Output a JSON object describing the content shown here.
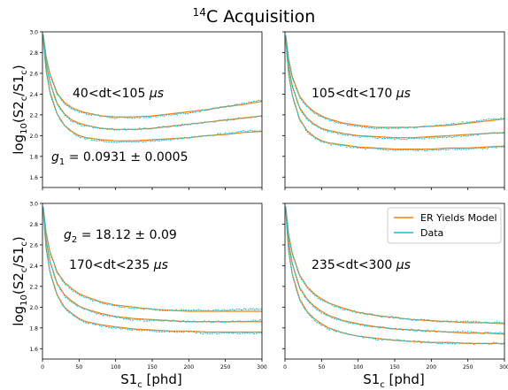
{
  "figure": {
    "title_sup": "14",
    "title_main": "C Acquisition"
  },
  "colors": {
    "model": "#ff7f0e",
    "data": "#17becf",
    "axis": "#000000"
  },
  "legend": {
    "placement": "top-right of bottom-right panel",
    "entries": [
      {
        "label": "ER Yields Model",
        "color": "#ff7f0e"
      },
      {
        "label": "Data",
        "color": "#17becf"
      }
    ]
  },
  "axes_common": {
    "xlabel": "S1",
    "xlabel_sub": "c",
    "xlabel_unit": " [phd]",
    "ylabel_pre": "log",
    "ylabel_10": "10",
    "ylabel_mid": "(S2",
    "ylabel_c1": "c",
    "ylabel_slash": "/S1",
    "ylabel_c2": "c",
    "ylabel_end": ")",
    "xlim": [
      0,
      300
    ],
    "ylim": [
      1.5,
      3.0
    ],
    "xticks": [
      "0",
      "50",
      "100",
      "150",
      "200",
      "250",
      "300"
    ],
    "yticks": [
      "1.6",
      "1.8",
      "2.0",
      "2.2",
      "2.4",
      "2.6",
      "2.8",
      "3.0"
    ]
  },
  "annotations": {
    "g1_sym": "g",
    "g1_sub": "1",
    "g1_val": " = 0.0931 ± 0.0005",
    "g2_sym": "g",
    "g2_sub": "2",
    "g2_val": " = 18.12 ± 0.09",
    "unit_mu": "μs"
  },
  "chart_data": [
    {
      "type": "line",
      "panel": "top-left",
      "label_range": "40<dt<105 ",
      "x": [
        1,
        5,
        10,
        20,
        30,
        40,
        50,
        60,
        80,
        100,
        125,
        150,
        175,
        200,
        225,
        250,
        275,
        300
      ],
      "series": [
        {
          "name": "ER Yields Model",
          "curves": [
            [
              2.97,
              2.76,
              2.6,
              2.41,
              2.32,
              2.27,
              2.24,
              2.22,
              2.19,
              2.18,
              2.18,
              2.19,
              2.21,
              2.23,
              2.25,
              2.28,
              2.3,
              2.33
            ],
            [
              2.95,
              2.7,
              2.52,
              2.31,
              2.21,
              2.15,
              2.12,
              2.1,
              2.07,
              2.06,
              2.06,
              2.07,
              2.09,
              2.11,
              2.13,
              2.15,
              2.17,
              2.19
            ],
            [
              2.93,
              2.63,
              2.43,
              2.21,
              2.1,
              2.04,
              2.0,
              1.98,
              1.96,
              1.95,
              1.95,
              1.96,
              1.97,
              1.98,
              2.0,
              2.01,
              2.03,
              2.04
            ]
          ]
        },
        {
          "name": "Data",
          "curves": [
            [
              2.97,
              2.75,
              2.59,
              2.4,
              2.31,
              2.26,
              2.23,
              2.21,
              2.19,
              2.17,
              2.17,
              2.18,
              2.2,
              2.22,
              2.25,
              2.28,
              2.31,
              2.34
            ],
            [
              2.95,
              2.69,
              2.51,
              2.3,
              2.2,
              2.14,
              2.11,
              2.09,
              2.07,
              2.06,
              2.06,
              2.07,
              2.09,
              2.11,
              2.13,
              2.15,
              2.17,
              2.19
            ],
            [
              2.93,
              2.62,
              2.42,
              2.2,
              2.09,
              2.03,
              1.99,
              1.97,
              1.95,
              1.94,
              1.94,
              1.95,
              1.96,
              1.98,
              2.0,
              2.02,
              2.04,
              2.05
            ]
          ]
        }
      ]
    },
    {
      "type": "line",
      "panel": "top-right",
      "label_range": "105<dt<170 ",
      "x": [
        1,
        5,
        10,
        20,
        30,
        40,
        50,
        60,
        80,
        100,
        125,
        150,
        175,
        200,
        225,
        250,
        275,
        300
      ],
      "series": [
        {
          "name": "ER Yields Model",
          "curves": [
            [
              2.97,
              2.74,
              2.57,
              2.38,
              2.29,
              2.23,
              2.19,
              2.16,
              2.12,
              2.1,
              2.08,
              2.08,
              2.08,
              2.09,
              2.1,
              2.12,
              2.14,
              2.16
            ],
            [
              2.95,
              2.67,
              2.48,
              2.27,
              2.17,
              2.11,
              2.07,
              2.05,
              2.02,
              2.0,
              1.99,
              1.98,
              1.98,
              1.99,
              2.0,
              2.01,
              2.02,
              2.03
            ],
            [
              2.93,
              2.6,
              2.39,
              2.16,
              2.05,
              1.99,
              1.95,
              1.93,
              1.91,
              1.89,
              1.88,
              1.87,
              1.87,
              1.87,
              1.88,
              1.88,
              1.89,
              1.9
            ]
          ]
        },
        {
          "name": "Data",
          "curves": [
            [
              2.97,
              2.73,
              2.56,
              2.37,
              2.28,
              2.22,
              2.18,
              2.15,
              2.11,
              2.09,
              2.07,
              2.07,
              2.08,
              2.09,
              2.11,
              2.13,
              2.15,
              2.17
            ],
            [
              2.95,
              2.66,
              2.47,
              2.26,
              2.16,
              2.1,
              2.06,
              2.04,
              2.01,
              1.99,
              1.98,
              1.97,
              1.97,
              1.98,
              1.99,
              2.0,
              2.02,
              2.03
            ],
            [
              2.93,
              2.59,
              2.38,
              2.15,
              2.04,
              1.98,
              1.94,
              1.92,
              1.9,
              1.88,
              1.87,
              1.86,
              1.86,
              1.86,
              1.87,
              1.87,
              1.88,
              1.89
            ]
          ]
        }
      ]
    },
    {
      "type": "line",
      "panel": "bottom-left",
      "label_range": "170<dt<235 ",
      "x": [
        1,
        5,
        10,
        20,
        30,
        40,
        50,
        60,
        80,
        100,
        125,
        150,
        175,
        200,
        225,
        250,
        275,
        300
      ],
      "series": [
        {
          "name": "ER Yields Model",
          "curves": [
            [
              2.97,
              2.72,
              2.54,
              2.34,
              2.24,
              2.18,
              2.13,
              2.1,
              2.05,
              2.02,
              2.0,
              1.98,
              1.97,
              1.96,
              1.96,
              1.96,
              1.96,
              1.96
            ],
            [
              2.95,
              2.65,
              2.45,
              2.23,
              2.12,
              2.06,
              2.01,
              1.98,
              1.94,
              1.91,
              1.89,
              1.88,
              1.87,
              1.86,
              1.86,
              1.86,
              1.86,
              1.86
            ],
            [
              2.93,
              2.57,
              2.35,
              2.12,
              2.0,
              1.94,
              1.89,
              1.86,
              1.83,
              1.81,
              1.79,
              1.78,
              1.77,
              1.77,
              1.76,
              1.76,
              1.76,
              1.76
            ]
          ]
        },
        {
          "name": "Data",
          "curves": [
            [
              2.97,
              2.71,
              2.53,
              2.33,
              2.23,
              2.17,
              2.12,
              2.09,
              2.04,
              2.01,
              1.99,
              1.98,
              1.97,
              1.97,
              1.97,
              1.97,
              1.98,
              1.98
            ],
            [
              2.95,
              2.64,
              2.44,
              2.22,
              2.11,
              2.05,
              2.0,
              1.97,
              1.93,
              1.9,
              1.88,
              1.87,
              1.87,
              1.86,
              1.86,
              1.86,
              1.87,
              1.87
            ],
            [
              2.93,
              2.56,
              2.34,
              2.11,
              1.99,
              1.93,
              1.88,
              1.85,
              1.82,
              1.8,
              1.78,
              1.77,
              1.76,
              1.76,
              1.75,
              1.75,
              1.75,
              1.75
            ]
          ]
        }
      ]
    },
    {
      "type": "line",
      "panel": "bottom-right",
      "label_range": "235<dt<300 ",
      "x": [
        1,
        5,
        10,
        20,
        30,
        40,
        50,
        60,
        80,
        100,
        125,
        150,
        175,
        200,
        225,
        250,
        275,
        300
      ],
      "series": [
        {
          "name": "ER Yields Model",
          "curves": [
            [
              2.97,
              2.7,
              2.52,
              2.31,
              2.2,
              2.13,
              2.08,
              2.04,
              1.99,
              1.95,
              1.92,
              1.9,
              1.88,
              1.87,
              1.86,
              1.85,
              1.85,
              1.84
            ],
            [
              2.95,
              2.63,
              2.42,
              2.19,
              2.08,
              2.01,
              1.96,
              1.92,
              1.87,
              1.84,
              1.81,
              1.79,
              1.78,
              1.77,
              1.76,
              1.75,
              1.75,
              1.74
            ],
            [
              2.93,
              2.55,
              2.32,
              2.08,
              1.96,
              1.89,
              1.84,
              1.8,
              1.75,
              1.72,
              1.7,
              1.68,
              1.67,
              1.66,
              1.66,
              1.65,
              1.65,
              1.65
            ]
          ]
        },
        {
          "name": "Data",
          "curves": [
            [
              2.97,
              2.69,
              2.51,
              2.3,
              2.19,
              2.12,
              2.07,
              2.03,
              1.98,
              1.95,
              1.92,
              1.9,
              1.88,
              1.87,
              1.86,
              1.86,
              1.85,
              1.85
            ],
            [
              2.95,
              2.62,
              2.41,
              2.18,
              2.07,
              2.0,
              1.95,
              1.91,
              1.86,
              1.83,
              1.81,
              1.79,
              1.78,
              1.77,
              1.76,
              1.76,
              1.75,
              1.75
            ],
            [
              2.93,
              2.54,
              2.31,
              2.07,
              1.95,
              1.88,
              1.83,
              1.79,
              1.75,
              1.72,
              1.69,
              1.68,
              1.67,
              1.66,
              1.65,
              1.65,
              1.65,
              1.65
            ]
          ]
        }
      ]
    }
  ]
}
